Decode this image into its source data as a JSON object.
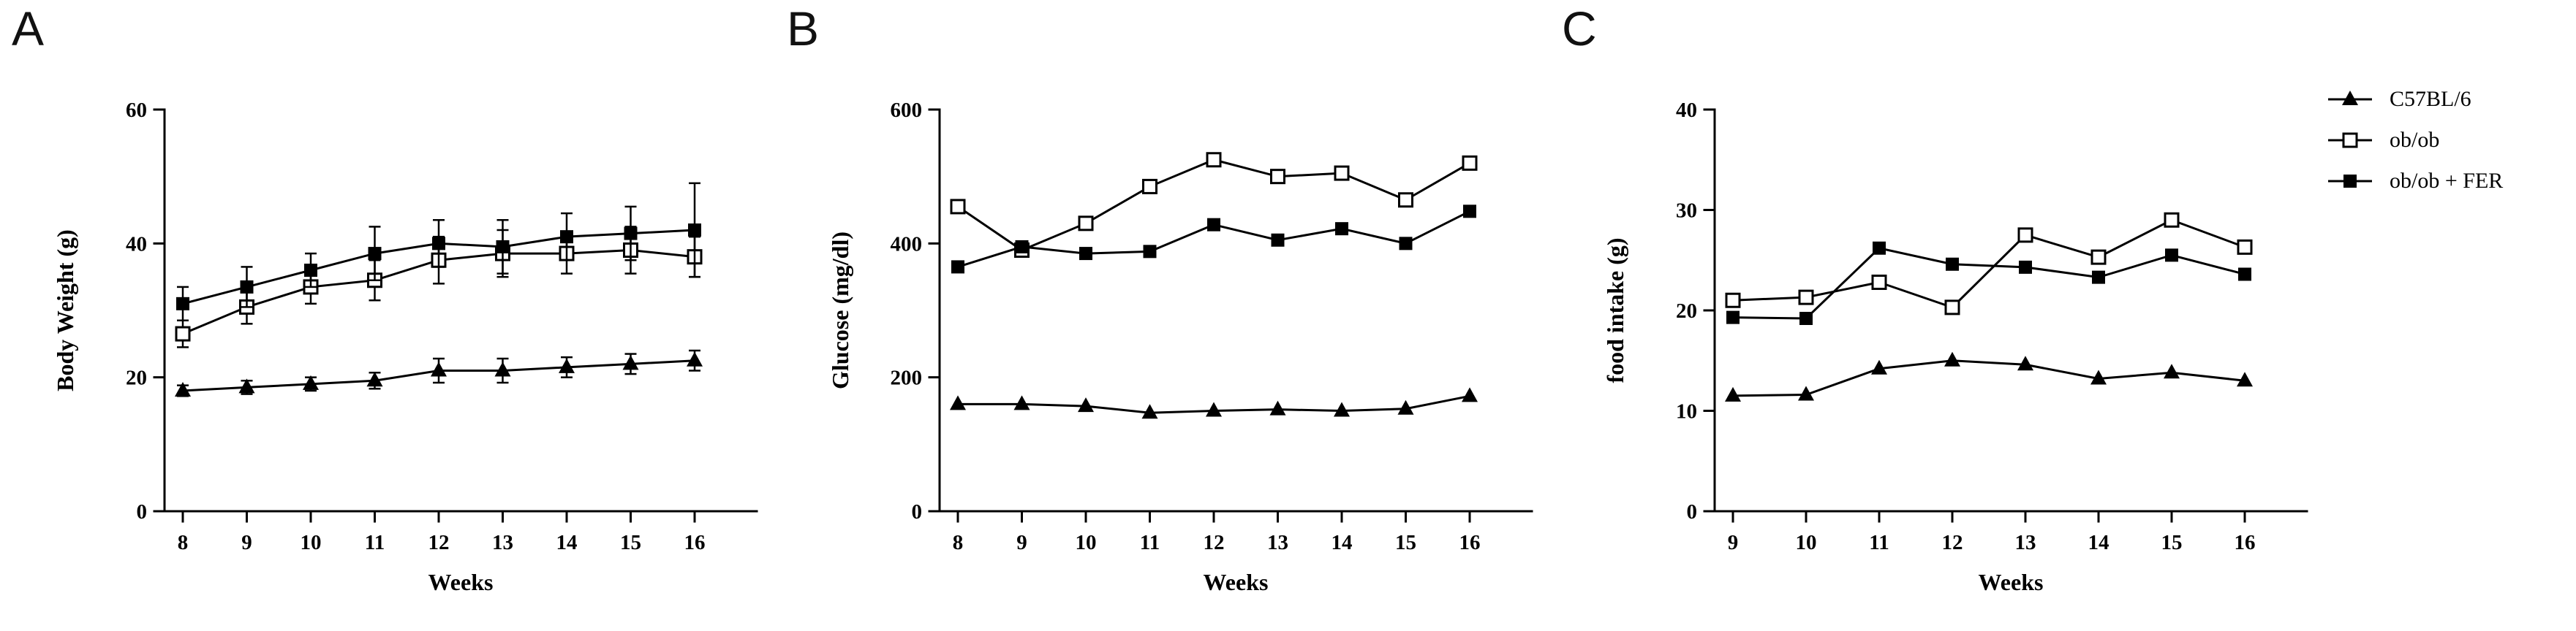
{
  "colors": {
    "ink": "#000000",
    "background": "#ffffff"
  },
  "legend": {
    "entries": [
      {
        "label": "C57BL/6",
        "marker": "triangle-filled"
      },
      {
        "label": "ob/ob",
        "marker": "square-open"
      },
      {
        "label": "ob/ob + FER",
        "marker": "square-filled"
      }
    ]
  },
  "chart_data": [
    {
      "type": "line",
      "panel": "A",
      "title": "",
      "xlabel": "Weeks",
      "ylabel": "Body Weight (g)",
      "x": [
        8,
        9,
        10,
        11,
        12,
        13,
        14,
        15,
        16
      ],
      "ylim": [
        0,
        60
      ],
      "yticks": [
        0,
        20,
        40,
        60
      ],
      "grid": false,
      "series": [
        {
          "name": "C57BL/6",
          "marker": "triangle-filled",
          "values": [
            18,
            18.5,
            19,
            19.5,
            21,
            21,
            21.5,
            22,
            22.5
          ],
          "errors": [
            0.8,
            1,
            1,
            1.2,
            1.8,
            1.8,
            1.5,
            1.5,
            1.5
          ]
        },
        {
          "name": "ob/ob",
          "marker": "square-open",
          "values": [
            26.5,
            30.5,
            33.5,
            34.5,
            37.5,
            38.5,
            38.5,
            39,
            38
          ],
          "errors": [
            2,
            2.5,
            2.5,
            3,
            3.5,
            3.5,
            3,
            3.5,
            3
          ]
        },
        {
          "name": "ob/ob + FER",
          "marker": "square-filled",
          "values": [
            31,
            33.5,
            36,
            38.5,
            40,
            39.5,
            41,
            41.5,
            42
          ],
          "errors": [
            2.5,
            3,
            2.5,
            4,
            3.5,
            4,
            3.5,
            4,
            7
          ]
        }
      ]
    },
    {
      "type": "line",
      "panel": "B",
      "title": "",
      "xlabel": "Weeks",
      "ylabel": "Glucose (mg/dl)",
      "x": [
        8,
        9,
        10,
        11,
        12,
        13,
        14,
        15,
        16
      ],
      "ylim": [
        0,
        600
      ],
      "yticks": [
        0,
        200,
        400,
        600
      ],
      "grid": false,
      "series": [
        {
          "name": "C57BL/6",
          "marker": "triangle-filled",
          "values": [
            160,
            160,
            157,
            147,
            150,
            152,
            150,
            153,
            172
          ]
        },
        {
          "name": "ob/ob",
          "marker": "square-open",
          "values": [
            455,
            390,
            430,
            485,
            525,
            500,
            505,
            465,
            520
          ]
        },
        {
          "name": "ob/ob + FER",
          "marker": "square-filled",
          "values": [
            365,
            395,
            385,
            388,
            428,
            405,
            422,
            400,
            448
          ]
        }
      ]
    },
    {
      "type": "line",
      "panel": "C",
      "title": "",
      "xlabel": "Weeks",
      "ylabel": "food intake (g)",
      "x": [
        9,
        10,
        11,
        12,
        13,
        14,
        15,
        16
      ],
      "ylim": [
        0,
        40
      ],
      "yticks": [
        0,
        10,
        20,
        30,
        40
      ],
      "grid": false,
      "series": [
        {
          "name": "C57BL/6",
          "marker": "triangle-filled",
          "values": [
            11.5,
            11.6,
            14.2,
            15,
            14.6,
            13.2,
            13.8,
            13
          ]
        },
        {
          "name": "ob/ob",
          "marker": "square-open",
          "values": [
            21,
            21.3,
            22.8,
            20.3,
            27.5,
            25.3,
            29,
            26.3
          ]
        },
        {
          "name": "ob/ob + FER",
          "marker": "square-filled",
          "values": [
            19.3,
            19.2,
            26.2,
            24.6,
            24.3,
            23.3,
            25.5,
            23.6
          ]
        }
      ]
    }
  ]
}
